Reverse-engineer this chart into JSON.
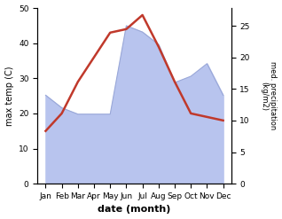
{
  "months": [
    "Jan",
    "Feb",
    "Mar",
    "Apr",
    "May",
    "Jun",
    "Jul",
    "Aug",
    "Sep",
    "Oct",
    "Nov",
    "Dec"
  ],
  "temp_max": [
    15,
    20,
    29,
    36,
    43,
    44,
    48,
    39,
    29,
    20,
    19,
    18
  ],
  "precip": [
    14,
    12,
    11,
    11,
    11,
    25,
    24,
    22,
    16,
    17,
    19,
    14
  ],
  "temp_color": "#c0392b",
  "precip_fill_color": "#b8c4ee",
  "precip_line_color": "#9aa8d8",
  "temp_ylim": [
    0,
    50
  ],
  "precip_ylim": [
    0,
    27.8
  ],
  "ylabel_left": "max temp (C)",
  "ylabel_right": "med. precipitation\n(kg/m2)",
  "xlabel": "date (month)",
  "precip_yticks": [
    0,
    5,
    10,
    15,
    20,
    25
  ],
  "temp_yticks": [
    0,
    10,
    20,
    30,
    40,
    50
  ],
  "background_color": "#ffffff"
}
